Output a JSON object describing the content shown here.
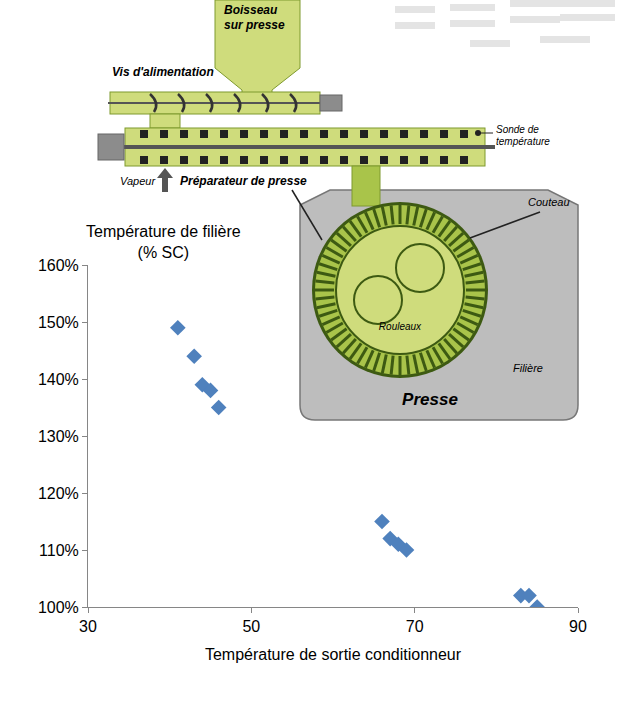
{
  "chart_data": {
    "type": "scatter",
    "xlabel": "Température de sortie conditionneur",
    "ylabel": "Température de filière (% SC)",
    "x": [
      41,
      43,
      44,
      45,
      46,
      66,
      67,
      68,
      69,
      83,
      84,
      85
    ],
    "values": [
      149,
      144,
      139,
      138,
      135,
      115,
      112,
      111,
      110,
      102,
      102,
      100
    ],
    "color": "#4f81bd",
    "marker": "diamond",
    "xlim": [
      30,
      90
    ],
    "xticks": [
      30,
      50,
      70,
      90
    ],
    "ylim": [
      100,
      160
    ],
    "yticks": [
      {
        "value": 100,
        "label": "100%"
      },
      {
        "value": 110,
        "label": "110%"
      },
      {
        "value": 120,
        "label": "120%"
      },
      {
        "value": 130,
        "label": "130%"
      },
      {
        "value": 140,
        "label": "140%"
      },
      {
        "value": 150,
        "label": "150%"
      },
      {
        "value": 160,
        "label": "160%"
      }
    ],
    "grid": false
  },
  "diagram": {
    "hopper": [
      "Boisseau",
      "sur presse"
    ],
    "feed_screw": "Vis d'alimentation",
    "probe": [
      "Sonde de",
      "température"
    ],
    "steam": "Vapeur",
    "conditioner": "Préparateur de presse",
    "knife": "Couteau",
    "rollers": "Rouleaux",
    "die": "Filière",
    "press": "Presse"
  }
}
